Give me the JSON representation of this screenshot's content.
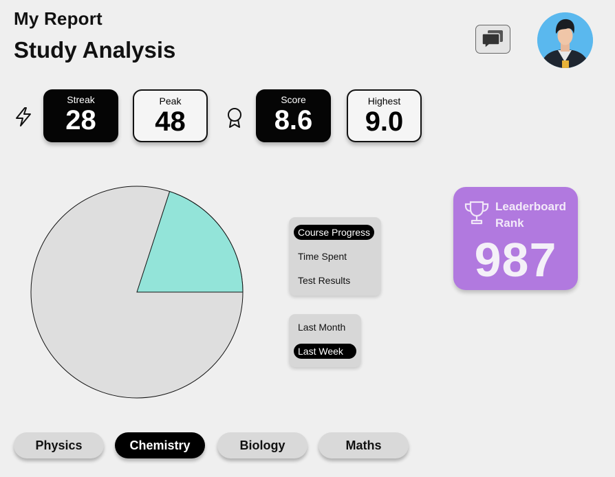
{
  "header": {
    "report_title": "My Report",
    "page_title": "Study Analysis"
  },
  "stats": {
    "streak": {
      "label": "Streak",
      "value": "28"
    },
    "peak": {
      "label": "Peak",
      "value": "48"
    },
    "score": {
      "label": "Score",
      "value": "8.6"
    },
    "highest": {
      "label": "Highest",
      "value": "9.0"
    }
  },
  "icons": {
    "streak": "lightning-icon",
    "score": "award-icon",
    "chat": "chat-icon",
    "rank": "trophy-icon"
  },
  "pie": {
    "highlight_fraction": 0.2,
    "highlight_color": "#93e4d9",
    "rest_color": "#dedede"
  },
  "metric_menu": {
    "options": [
      "Course Progress",
      "Time Spent",
      "Test Results"
    ],
    "selected": "Course Progress"
  },
  "period_menu": {
    "options": [
      "Last Month",
      "Last Week"
    ],
    "selected": "Last Week"
  },
  "leaderboard": {
    "label": "Leaderboard Rank",
    "value": "987",
    "color": "#b179df"
  },
  "subjects": {
    "items": [
      "Physics",
      "Chemistry",
      "Biology",
      "Maths"
    ],
    "selected": "Chemistry"
  }
}
